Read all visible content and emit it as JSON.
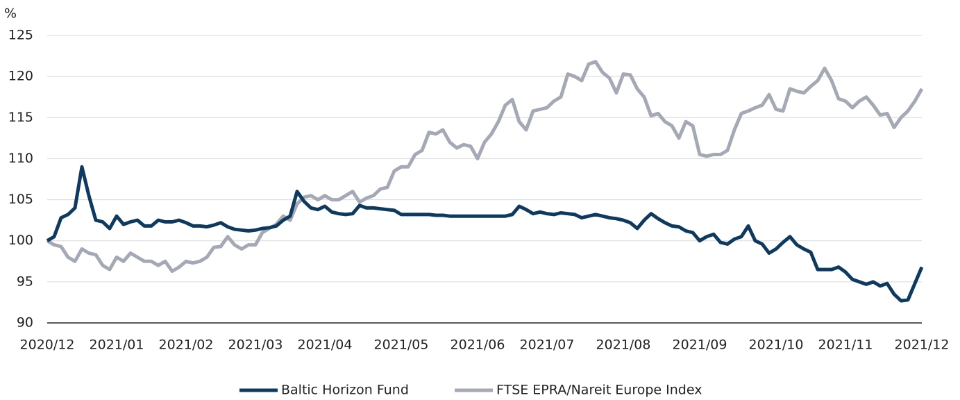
{
  "chart_data": {
    "type": "line",
    "y_label": "%",
    "categories": [
      "2020/12",
      null,
      null,
      null,
      null,
      null,
      null,
      null,
      null,
      null,
      "2021/01",
      null,
      null,
      null,
      null,
      null,
      null,
      null,
      null,
      null,
      "2021/02",
      null,
      null,
      null,
      null,
      null,
      null,
      null,
      null,
      null,
      "2021/03",
      null,
      null,
      null,
      null,
      null,
      null,
      null,
      null,
      null,
      "2021/04",
      null,
      null,
      null,
      null,
      null,
      null,
      null,
      null,
      null,
      null,
      "2021/05",
      null,
      null,
      null,
      null,
      null,
      null,
      null,
      null,
      null,
      null,
      "2021/06",
      null,
      null,
      null,
      null,
      null,
      null,
      null,
      null,
      null,
      "2021/07",
      null,
      null,
      null,
      null,
      null,
      null,
      null,
      null,
      null,
      null,
      "2021/08",
      null,
      null,
      null,
      null,
      null,
      null,
      null,
      null,
      null,
      null,
      "2021/09",
      null,
      null,
      null,
      null,
      null,
      null,
      null,
      null,
      null,
      null,
      "2021/10",
      null,
      null,
      null,
      null,
      null,
      null,
      null,
      null,
      null,
      "2021/11",
      null,
      null,
      null,
      null,
      null,
      null,
      null,
      null,
      null,
      null,
      "2021/12"
    ],
    "series": [
      {
        "name": "Baltic Horizon Fund",
        "color": "#0f3a5f",
        "values": [
          100,
          100.5,
          102.8,
          103.2,
          104,
          109,
          105.5,
          102.5,
          102.3,
          101.5,
          103,
          102,
          102.3,
          102.5,
          101.8,
          101.8,
          102.5,
          102.3,
          102.3,
          102.5,
          102.2,
          101.8,
          101.8,
          101.7,
          101.9,
          102.2,
          101.7,
          101.4,
          101.3,
          101.2,
          101.3,
          101.5,
          101.6,
          101.8,
          102.5,
          103,
          106,
          104.8,
          104,
          103.8,
          104.2,
          103.5,
          103.3,
          103.2,
          103.3,
          104.3,
          104,
          104,
          103.9,
          103.8,
          103.7,
          103.2,
          103.2,
          103.2,
          103.2,
          103.2,
          103.1,
          103.1,
          103,
          103,
          103,
          103,
          103,
          103,
          103,
          103,
          103,
          103.2,
          104.2,
          103.8,
          103.3,
          103.5,
          103.3,
          103.2,
          103.4,
          103.3,
          103.2,
          102.8,
          103,
          103.2,
          103,
          102.8,
          102.7,
          102.5,
          102.2,
          101.5,
          102.5,
          103.3,
          102.7,
          102.2,
          101.8,
          101.7,
          101.2,
          101,
          100,
          100.5,
          100.8,
          99.8,
          99.6,
          100.2,
          100.5,
          101.8,
          100,
          99.6,
          98.5,
          99,
          99.8,
          100.5,
          99.5,
          99,
          98.6,
          96.5,
          96.5,
          96.5,
          96.8,
          96.2,
          95.3,
          95,
          94.7,
          95,
          94.5,
          94.8,
          93.5,
          92.7,
          92.8,
          94.8,
          96.8
        ]
      },
      {
        "name": "FTSE EPRA/Nareit Europe Index",
        "color": "#a4a9b5",
        "values": [
          100,
          99.5,
          99.3,
          98,
          97.5,
          99,
          98.5,
          98.3,
          97,
          96.5,
          98,
          97.5,
          98.5,
          98,
          97.5,
          97.5,
          97,
          97.5,
          96.3,
          96.8,
          97.5,
          97.3,
          97.5,
          98,
          99.2,
          99.3,
          100.5,
          99.5,
          99,
          99.5,
          99.5,
          101,
          101.5,
          102,
          103,
          102.5,
          104.5,
          105.3,
          105.5,
          105,
          105.5,
          105,
          105,
          105.5,
          106,
          104.7,
          105.2,
          105.5,
          106.3,
          106.5,
          108.5,
          109,
          109,
          110.5,
          111,
          113.2,
          113,
          113.5,
          112,
          111.3,
          111.7,
          111.5,
          110,
          112,
          113,
          114.5,
          116.5,
          117.2,
          114.5,
          113.5,
          115.8,
          116,
          116.2,
          117,
          117.5,
          120.3,
          120,
          119.5,
          121.5,
          121.8,
          120.5,
          119.8,
          118,
          120.3,
          120.2,
          118.5,
          117.5,
          115.2,
          115.5,
          114.5,
          114,
          112.5,
          114.5,
          114,
          110.5,
          110.3,
          110.5,
          110.5,
          111,
          113.5,
          115.5,
          115.8,
          116.2,
          116.5,
          117.8,
          116,
          115.8,
          118.5,
          118.2,
          118,
          118.8,
          119.5,
          121,
          119.5,
          117.3,
          117,
          116.2,
          117,
          117.5,
          116.5,
          115.3,
          115.5,
          113.8,
          115,
          115.8,
          117,
          118.5
        ]
      }
    ],
    "ylim": [
      90,
      125
    ],
    "yticks": [
      90,
      95,
      100,
      105,
      110,
      115,
      120,
      125
    ],
    "grid": true
  }
}
